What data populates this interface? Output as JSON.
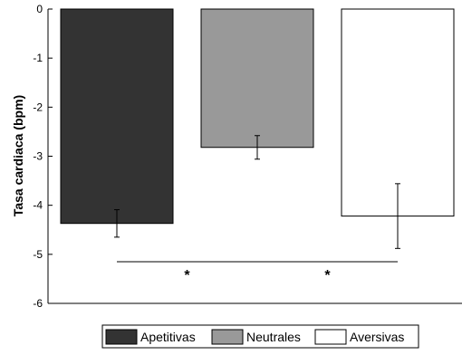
{
  "chart_data": {
    "type": "bar",
    "title": "",
    "xlabel": "",
    "ylabel": "Tasa cardiaca (bpm)",
    "ylim": [
      -6,
      0
    ],
    "yticks": [
      0,
      -1,
      -2,
      -3,
      -4,
      -5,
      -6
    ],
    "grid": false,
    "legend_position": "bottom",
    "categories": [
      "Apetitivas",
      "Neutrales",
      "Aversivas"
    ],
    "series": [
      {
        "name": "Apetitivas",
        "value": -4.37,
        "error": 0.28,
        "color": "#333333"
      },
      {
        "name": "Neutrales",
        "value": -2.82,
        "error": 0.24,
        "color": "#999999"
      },
      {
        "name": "Aversivas",
        "value": -4.22,
        "error": 0.66,
        "color": "#ffffff"
      }
    ],
    "annotations": [
      {
        "from": 0,
        "to": 1,
        "y": -5.15,
        "label": "*"
      },
      {
        "from": 1,
        "to": 2,
        "y": -5.15,
        "label": "*"
      }
    ]
  }
}
